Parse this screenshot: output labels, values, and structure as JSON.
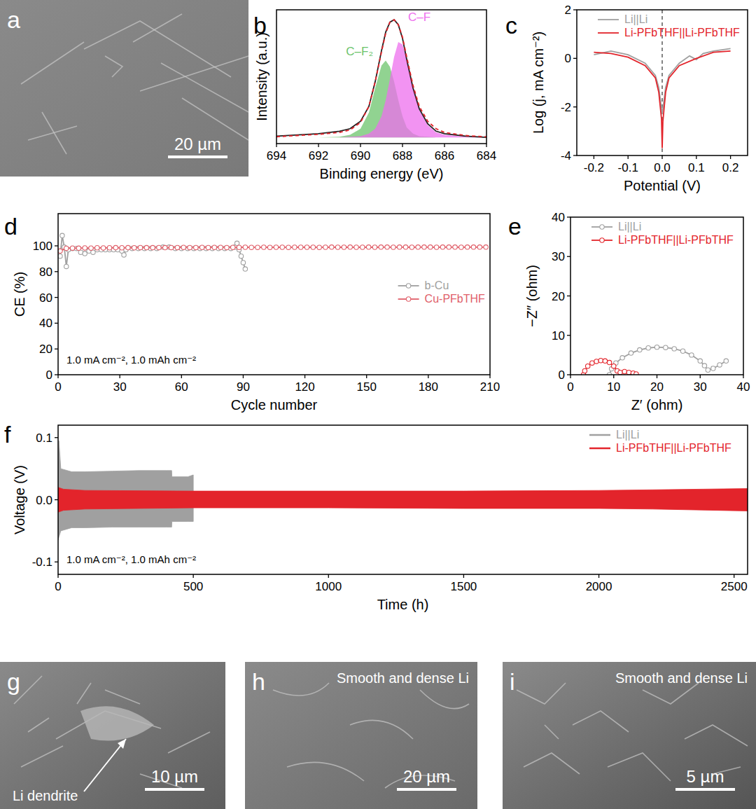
{
  "chart_data": [
    {
      "panel": "b",
      "type": "line",
      "xlabel": "Binding energy (eV)",
      "ylabel": "Intensity (a.u.)",
      "xlim": [
        694,
        684
      ],
      "ylim": [
        0,
        1.08
      ],
      "xticks": [
        694,
        692,
        690,
        688,
        686,
        684
      ],
      "tick_labels": "x",
      "grid": false,
      "series": [
        {
          "name": "C–F₂",
          "type": "area",
          "color": "#6cc46c",
          "x": [
            694,
            693,
            692,
            691,
            690.5,
            690,
            689.6,
            689.3,
            689,
            688.8,
            688.6,
            688.4,
            688.2,
            688,
            687.8,
            687.5,
            687.2,
            686.8,
            686.4,
            686,
            685,
            684
          ],
          "values": [
            0.05,
            0.05,
            0.05,
            0.055,
            0.07,
            0.12,
            0.25,
            0.45,
            0.63,
            0.67,
            0.62,
            0.5,
            0.35,
            0.22,
            0.13,
            0.08,
            0.06,
            0.055,
            0.05,
            0.05,
            0.05,
            0.05
          ]
        },
        {
          "name": "C–F",
          "type": "area",
          "color": "#ee6fee",
          "x": [
            694,
            693,
            692,
            691,
            690.5,
            690,
            689.6,
            689.3,
            689,
            688.8,
            688.6,
            688.4,
            688.2,
            688,
            687.8,
            687.5,
            687.2,
            686.8,
            686.4,
            686,
            685,
            684
          ],
          "values": [
            0.05,
            0.05,
            0.05,
            0.05,
            0.055,
            0.06,
            0.08,
            0.12,
            0.22,
            0.35,
            0.52,
            0.7,
            0.82,
            0.8,
            0.68,
            0.45,
            0.27,
            0.15,
            0.09,
            0.07,
            0.055,
            0.05
          ]
        },
        {
          "type": "line",
          "color": "#222222",
          "line_style": "solid",
          "x": [
            694,
            693,
            692,
            691,
            690.5,
            690,
            689.6,
            689.3,
            689,
            688.8,
            688.6,
            688.4,
            688.2,
            688,
            687.8,
            687.5,
            687.2,
            686.8,
            686.4,
            686,
            685,
            684
          ],
          "values": [
            0.06,
            0.07,
            0.08,
            0.1,
            0.12,
            0.18,
            0.3,
            0.5,
            0.75,
            0.9,
            0.98,
            1.0,
            0.96,
            0.85,
            0.68,
            0.45,
            0.28,
            0.16,
            0.1,
            0.08,
            0.06,
            0.05
          ]
        },
        {
          "type": "line",
          "color": "#e3242b",
          "line_style": "dashed",
          "x": [
            694,
            693,
            692,
            691,
            690.5,
            690,
            689.6,
            689.3,
            689,
            688.8,
            688.6,
            688.4,
            688.2,
            688,
            687.8,
            687.5,
            687.2,
            686.8,
            686.4,
            686,
            685,
            684
          ],
          "values": [
            0.055,
            0.065,
            0.075,
            0.09,
            0.11,
            0.17,
            0.3,
            0.5,
            0.74,
            0.89,
            0.98,
            1.0,
            0.96,
            0.86,
            0.7,
            0.47,
            0.3,
            0.18,
            0.12,
            0.09,
            0.065,
            0.055
          ]
        }
      ]
    },
    {
      "panel": "c",
      "type": "line",
      "xlabel": "Potential (V)",
      "ylabel": "Log (j, mA cm⁻²)",
      "xlim": [
        -0.25,
        0.25
      ],
      "ylim": [
        -4,
        2
      ],
      "xticks": [
        -0.2,
        -0.1,
        {
          "value": 0,
          "label": "0.0"
        },
        0.1,
        0.2
      ],
      "yticks": [
        -4,
        -2,
        0,
        2
      ],
      "grid": false,
      "legend": "upper left",
      "reference_x": 0,
      "series": [
        {
          "name": "Li||Li",
          "color": "#a0a0a0",
          "line_style": "solid",
          "x": [
            -0.2,
            -0.15,
            -0.1,
            -0.05,
            -0.02,
            -0.01,
            0,
            0.01,
            0.02,
            0.05,
            0.08,
            0.1,
            0.12,
            0.15,
            0.2
          ],
          "values": [
            0.15,
            0.3,
            0.15,
            -0.2,
            -0.7,
            -1.2,
            -2.3,
            -1.2,
            -0.7,
            -0.2,
            0.1,
            -0.05,
            0.2,
            0.3,
            0.4
          ]
        },
        {
          "name": "Li-PFbTHF||Li-PFbTHF",
          "color": "#e3242b",
          "line_style": "solid",
          "x": [
            -0.2,
            -0.15,
            -0.1,
            -0.05,
            -0.02,
            -0.01,
            -0.002,
            0,
            0.002,
            0.01,
            0.02,
            0.05,
            0.1,
            0.15,
            0.2
          ],
          "values": [
            0.25,
            0.2,
            0.05,
            -0.3,
            -0.8,
            -1.4,
            -2.5,
            -3.7,
            -2.6,
            -1.4,
            -0.8,
            -0.3,
            0.0,
            0.25,
            0.3
          ]
        }
      ]
    },
    {
      "panel": "d",
      "type": "line",
      "xlabel": "Cycle number",
      "ylabel": "CE (%)",
      "xlim": [
        0,
        210
      ],
      "ylim": [
        0,
        125
      ],
      "xticks": [
        0,
        30,
        60,
        90,
        120,
        150,
        180,
        210
      ],
      "yticks": [
        0,
        20,
        40,
        60,
        80,
        100
      ],
      "grid": false,
      "legend": "center right",
      "annotation": "1.0 mA cm⁻², 1.0 mAh cm⁻²",
      "series": [
        {
          "name": "b-Cu",
          "color": "#a0a0a0",
          "marker": "circle",
          "line_style": "solid",
          "x": [
            1,
            2,
            3,
            4,
            5,
            7,
            9,
            11,
            13,
            15,
            17,
            19,
            21,
            23,
            25,
            27,
            29,
            31,
            32,
            33,
            36,
            39,
            42,
            45,
            48,
            51,
            54,
            57,
            60,
            63,
            66,
            69,
            72,
            75,
            78,
            81,
            84,
            86,
            87,
            88,
            89,
            90,
            91
          ],
          "values": [
            92,
            108,
            99,
            84,
            97,
            98,
            98,
            95,
            94,
            96,
            95,
            97,
            97,
            97,
            97,
            97,
            97,
            96,
            93,
            97,
            98,
            98,
            98,
            98,
            98,
            99,
            99,
            98,
            98,
            98,
            98,
            98,
            98,
            98,
            98,
            98,
            98,
            99,
            102,
            97,
            92,
            87,
            82
          ]
        },
        {
          "name": "Cu-PFbTHF",
          "color": "#e0606a",
          "marker": "circle",
          "line_style": "solid",
          "x": [
            1,
            4,
            7,
            10,
            13,
            16,
            19,
            22,
            25,
            28,
            31,
            34,
            37,
            40,
            43,
            46,
            49,
            52,
            55,
            58,
            61,
            64,
            67,
            70,
            73,
            76,
            79,
            82,
            85,
            88,
            91,
            94,
            97,
            100,
            103,
            106,
            109,
            112,
            115,
            118,
            121,
            124,
            127,
            130,
            133,
            136,
            139,
            142,
            145,
            148,
            151,
            154,
            157,
            160,
            163,
            166,
            169,
            172,
            175,
            178,
            181,
            184,
            187,
            190,
            193,
            196,
            199,
            202,
            205,
            208
          ],
          "values": [
            96,
            98.1,
            98.3,
            98.2,
            98.4,
            98.3,
            98.5,
            98.4,
            98.5,
            98.6,
            98.5,
            98.6,
            98.5,
            98.7,
            98.6,
            98.6,
            98.7,
            98.6,
            98.7,
            98.7,
            98.8,
            98.7,
            98.7,
            98.8,
            98.7,
            98.8,
            98.8,
            98.7,
            98.8,
            98.8,
            98.9,
            98.8,
            98.8,
            98.9,
            98.8,
            98.9,
            98.9,
            98.8,
            98.9,
            98.9,
            98.9,
            98.9,
            98.8,
            98.9,
            99,
            98.9,
            98.9,
            99,
            98.9,
            98.9,
            99,
            98.9,
            99,
            99,
            98.9,
            99,
            99,
            98.9,
            99,
            99,
            99,
            98.9,
            99,
            99,
            99,
            98.9,
            99,
            99,
            99,
            99
          ]
        }
      ]
    },
    {
      "panel": "e",
      "type": "line",
      "xlabel": "Z′ (ohm)",
      "ylabel": "−Z″ (ohm)",
      "xlim": [
        0,
        40
      ],
      "ylim": [
        0,
        40
      ],
      "xticks": [
        0,
        10,
        20,
        30,
        40
      ],
      "yticks": [
        0,
        10,
        20,
        30,
        40
      ],
      "grid": false,
      "legend": "upper left",
      "series": [
        {
          "name": "Li||Li",
          "color": "#a0a0a0",
          "marker": "circle",
          "line_style": "solid",
          "x": [
            9,
            9.5,
            10.5,
            12,
            14,
            16,
            18,
            20,
            22,
            24,
            26,
            28,
            30,
            31,
            31.8,
            33,
            34.5,
            36
          ],
          "values": [
            0,
            1.5,
            3,
            4.3,
            5.5,
            6.3,
            6.8,
            7,
            6.9,
            6.6,
            6,
            5,
            3.5,
            2.3,
            1.2,
            1.6,
            2.5,
            3.5
          ]
        },
        {
          "name": "Li-PFbTHF||Li-PFbTHF",
          "color": "#e3242b",
          "marker": "circle",
          "line_style": "solid",
          "x": [
            3,
            3.3,
            4,
            5,
            6,
            7,
            8,
            9,
            10,
            10.8,
            11.5,
            12.5,
            13.5,
            14.5,
            15.2
          ],
          "values": [
            0,
            1,
            2.2,
            3,
            3.4,
            3.6,
            3.5,
            3.1,
            2.2,
            1,
            0.6,
            0.8,
            0.6,
            0.4,
            0.2
          ]
        }
      ]
    },
    {
      "panel": "f",
      "type": "band",
      "xlabel": "Time (h)",
      "ylabel": "Voltage (V)",
      "xlim": [
        0,
        2550
      ],
      "ylim": [
        -0.12,
        0.12
      ],
      "xticks": [
        0,
        500,
        1000,
        1500,
        2000,
        2500
      ],
      "yticks": [
        -0.1,
        {
          "value": 0,
          "label": "0.0"
        },
        0.1
      ],
      "grid": false,
      "legend": "upper right",
      "annotation": "1.0 mA cm⁻², 1.0 mAh cm⁻²",
      "series": [
        {
          "name": "Li||Li",
          "color": "#a0a0a0",
          "x": [
            0,
            3,
            10,
            50,
            100,
            200,
            300,
            400,
            420,
            421,
            480,
            500
          ],
          "values": [
            0.06,
            0.095,
            0.05,
            0.045,
            0.045,
            0.046,
            0.047,
            0.047,
            0.047,
            0.037,
            0.037,
            0.04
          ],
          "lower": [
            -0.065,
            -0.06,
            -0.05,
            -0.045,
            -0.045,
            -0.044,
            -0.044,
            -0.044,
            -0.044,
            -0.035,
            -0.035,
            -0.035
          ]
        },
        {
          "name": "Li-PFbTHF||Li-PFbTHF",
          "color": "#e3242b",
          "x": [
            0,
            20,
            100,
            500,
            1000,
            1500,
            2000,
            2200,
            2550
          ],
          "values": [
            0.02,
            0.017,
            0.015,
            0.014,
            0.014,
            0.014,
            0.015,
            0.016,
            0.018
          ],
          "lower": [
            -0.02,
            -0.017,
            -0.015,
            -0.013,
            -0.013,
            -0.014,
            -0.014,
            -0.015,
            -0.018
          ]
        }
      ]
    }
  ],
  "images": [
    {
      "panel": "a",
      "scale_bar": "20 µm"
    },
    {
      "panel": "g",
      "scale_bar": "10 µm",
      "annotation": "Li dendrite"
    },
    {
      "panel": "h",
      "scale_bar": "20 µm",
      "caption": "Smooth and dense Li"
    },
    {
      "panel": "i",
      "scale_bar": "5 µm",
      "caption": "Smooth and dense Li"
    }
  ]
}
